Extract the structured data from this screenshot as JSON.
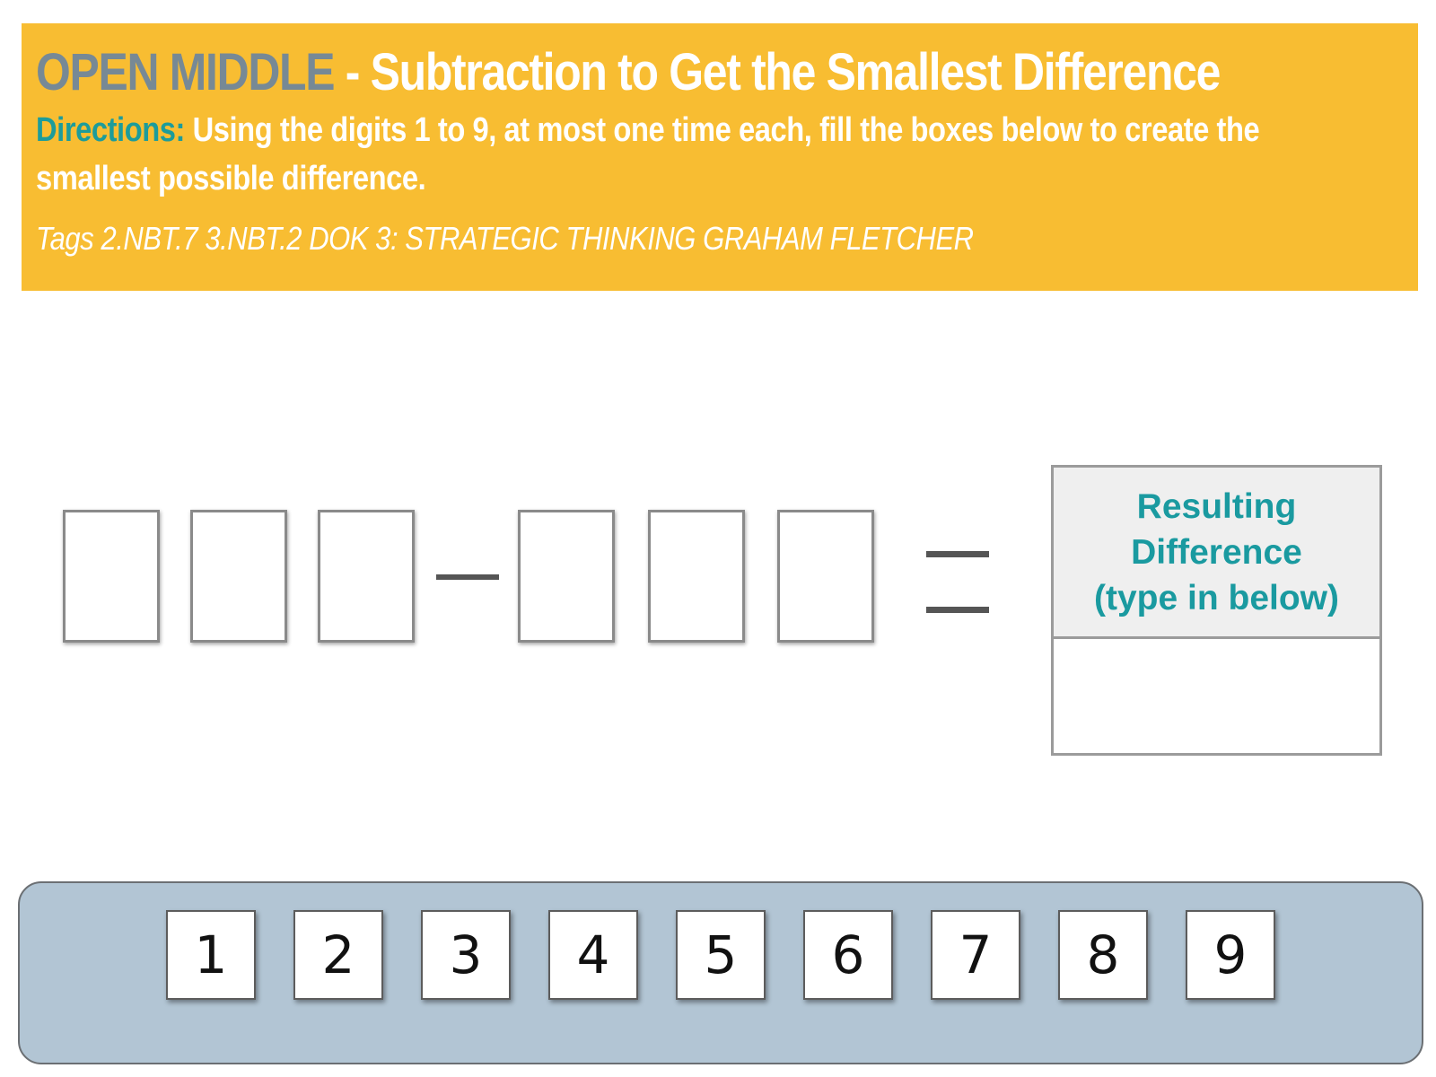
{
  "header": {
    "brand": "OPEN MIDDLE",
    "title": " - Subtraction to Get the Smallest Difference",
    "directions_label": "Directions:",
    "directions_text": " Using the digits 1 to 9, at most one time each, fill the boxes below to create the smallest possible difference.",
    "tags": "Tags 2.NBT.7 3.NBT.2 DOK 3: STRATEGIC THINKING GRAHAM FLETCHER"
  },
  "result": {
    "header_line1": "Resulting",
    "header_line2": "Difference",
    "header_line3": "(type in below)",
    "value": ""
  },
  "tiles": [
    "1",
    "2",
    "3",
    "4",
    "5",
    "6",
    "7",
    "8",
    "9"
  ],
  "colors": {
    "banner": "#f8bd32",
    "brand": "#778995",
    "accent_teal": "#1a9aa0",
    "tray": "#b2c5d4"
  }
}
